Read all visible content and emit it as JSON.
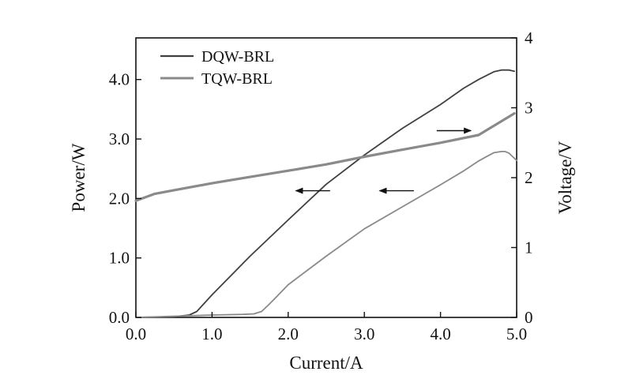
{
  "chart_data": {
    "type": "line",
    "xlabel": "Current/A",
    "ylabel_left": "Power/W",
    "ylabel_right": "Voltage/V",
    "xlim": [
      0,
      5.0
    ],
    "ylim_left": [
      0,
      4.7
    ],
    "ylim_right": [
      0,
      4
    ],
    "x_ticks": [
      0,
      1,
      2,
      3,
      4,
      5
    ],
    "x_tick_labels": [
      "0.0",
      "1.0",
      "2.0",
      "3.0",
      "4.0",
      "5.0"
    ],
    "y_left_ticks": [
      0,
      1,
      2,
      3,
      4
    ],
    "y_left_tick_labels": [
      "0.0",
      "1.0",
      "2.0",
      "3.0",
      "4.0"
    ],
    "y_right_ticks": [
      0,
      1,
      2,
      3,
      4
    ],
    "y_right_tick_labels": [
      "0",
      "1",
      "2",
      "3",
      "4"
    ],
    "grid": false,
    "legend_position": "top-left",
    "series": [
      {
        "name": "DQW-BRL",
        "axis": "left",
        "quantity": "power",
        "color": "#404040",
        "x": [
          0,
          0.5,
          0.7,
          0.8,
          0.9,
          1.0,
          1.5,
          2.0,
          2.5,
          3.0,
          3.5,
          4.0,
          4.3,
          4.5,
          4.7,
          4.8,
          4.9,
          4.97
        ],
        "y": [
          0,
          0.01,
          0.04,
          0.1,
          0.24,
          0.38,
          1.03,
          1.64,
          2.24,
          2.73,
          3.18,
          3.58,
          3.85,
          4.0,
          4.13,
          4.16,
          4.16,
          4.14
        ]
      },
      {
        "name": "TQW-BRL",
        "axis": "right",
        "quantity": "voltage",
        "color": "#8a8a8a",
        "x": [
          0,
          0.25,
          0.5,
          1.0,
          1.5,
          2.0,
          2.5,
          3.0,
          3.5,
          4.0,
          4.5,
          4.97
        ],
        "y": [
          1.67,
          1.77,
          1.82,
          1.92,
          2.01,
          2.1,
          2.19,
          2.3,
          2.4,
          2.5,
          2.61,
          2.92
        ]
      },
      {
        "name": "TQW-BRL",
        "axis": "left",
        "quantity": "power",
        "color": "#8a8a8a",
        "x": [
          0,
          0.5,
          1.0,
          1.4,
          1.55,
          1.65,
          1.75,
          1.85,
          2.0,
          2.5,
          3.0,
          3.5,
          4.0,
          4.3,
          4.5,
          4.6,
          4.7,
          4.8,
          4.85,
          4.9,
          4.95,
          5.0
        ],
        "y": [
          0,
          0.02,
          0.04,
          0.05,
          0.06,
          0.1,
          0.22,
          0.35,
          0.55,
          1.03,
          1.49,
          1.86,
          2.23,
          2.46,
          2.63,
          2.7,
          2.77,
          2.79,
          2.79,
          2.76,
          2.7,
          2.64
        ]
      }
    ],
    "annotations": [
      {
        "type": "arrow",
        "direction": "left",
        "axis": "left",
        "x_from": 2.55,
        "x_to": 2.1,
        "y": 2.13
      },
      {
        "type": "arrow",
        "direction": "left",
        "axis": "left",
        "x_from": 3.65,
        "x_to": 3.2,
        "y": 2.13
      },
      {
        "type": "arrow",
        "direction": "right",
        "axis": "left",
        "x_from": 3.95,
        "x_to": 4.4,
        "y": 3.14
      }
    ]
  }
}
